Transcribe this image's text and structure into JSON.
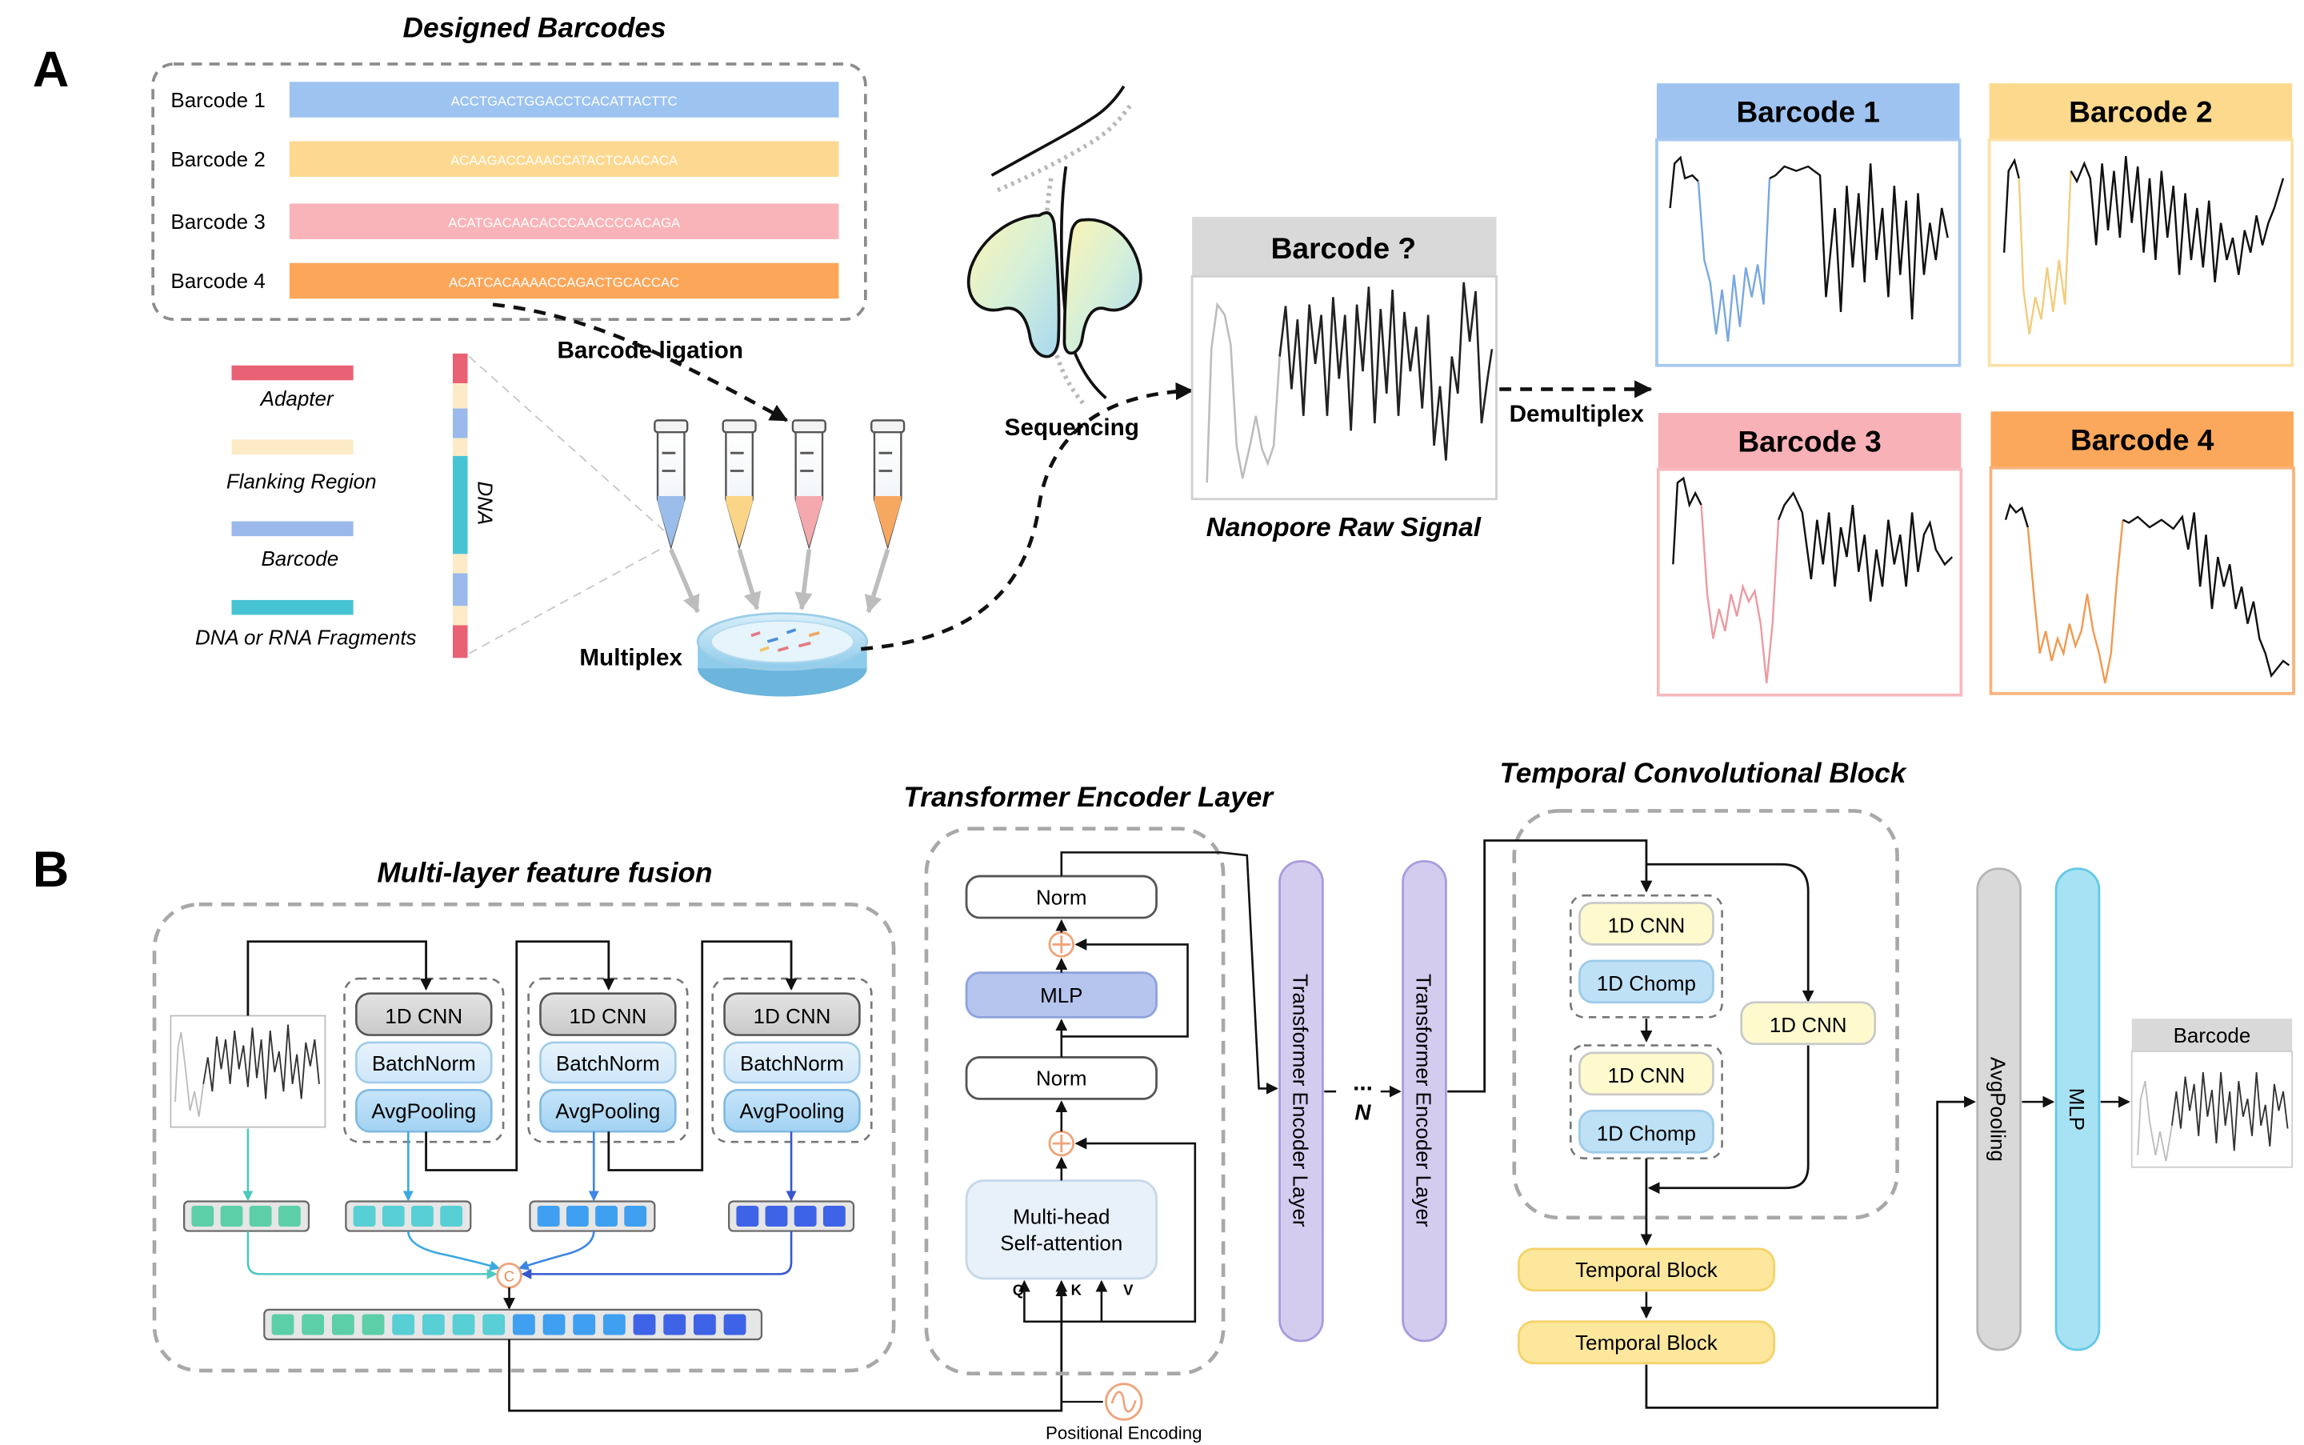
{
  "panel_a": {
    "label": "A",
    "designed_barcodes": {
      "title": "Designed Barcodes",
      "items": [
        {
          "name": "Barcode 1",
          "seq": "ACCTGACTGGACCTCACATTACTTC",
          "color": "#9dc3f0"
        },
        {
          "name": "Barcode 2",
          "seq": "ACAAGACCAAACCATACTCAACACA",
          "color": "#fdd890"
        },
        {
          "name": "Barcode 3",
          "seq": "ACATGACAACACCCAACCCCACAGA",
          "color": "#f9b4b9"
        },
        {
          "name": "Barcode 4",
          "seq": "ACATCACAAAACCAGACTGCACCAC",
          "color": "#fca65a"
        }
      ]
    },
    "legend": [
      {
        "label": "Adapter",
        "color": "#e86174"
      },
      {
        "label": "Flanking Region",
        "color": "#fcebc6"
      },
      {
        "label": "Barcode",
        "color": "#9bb9ea"
      },
      {
        "label": "DNA or RNA Fragments",
        "color": "#47c4d3"
      }
    ],
    "dna_label": "DNA",
    "barcode_ligation": "Barcode ligation",
    "multiplex": "Multiplex",
    "sequencing": "Sequencing",
    "unknown_signal": {
      "title": "Barcode ?",
      "caption": "Nanopore Raw Signal"
    },
    "demultiplex": "Demultiplex",
    "outputs": [
      {
        "title": "Barcode 1",
        "header_color": "#9fc3f0",
        "border_color": "#a6c8f0",
        "signal_color": "#7aa8e0"
      },
      {
        "title": "Barcode 2",
        "header_color": "#fdd98d",
        "border_color": "#fce0a4",
        "signal_color": "#f1cd7e"
      },
      {
        "title": "Barcode 3",
        "header_color": "#f8b1b7",
        "border_color": "#f6b9be",
        "signal_color": "#eb9ba3"
      },
      {
        "title": "Barcode 4",
        "header_color": "#fca85c",
        "border_color": "#f9b27a",
        "signal_color": "#ef9b52"
      }
    ]
  },
  "panel_b": {
    "label": "B",
    "fusion": {
      "title": "Multi-layer feature fusion",
      "block_labels": [
        "1D CNN",
        "BatchNorm",
        "AvgPooling"
      ],
      "concat_symbol": "C"
    },
    "transformer": {
      "title": "Transformer Encoder Layer",
      "norm_top": "Norm",
      "mlp": "MLP",
      "norm_bottom": "Norm",
      "attention_line1": "Multi-head",
      "attention_line2": "Self-attention",
      "q": "Q",
      "k": "K",
      "v": "V",
      "positional_encoding": "Positional Encoding"
    },
    "stack": {
      "layer_label": "Transformer Encoder Layer",
      "dots": "...",
      "n": "N"
    },
    "tcn": {
      "title": "Temporal Convolutional Block",
      "cnn": "1D CNN",
      "chomp": "1D Chomp",
      "residual_cnn": "1D CNN",
      "temporal_block": "Temporal Block"
    },
    "avgpooling": "AvgPooling",
    "mlp": "MLP",
    "output": "Barcode"
  }
}
